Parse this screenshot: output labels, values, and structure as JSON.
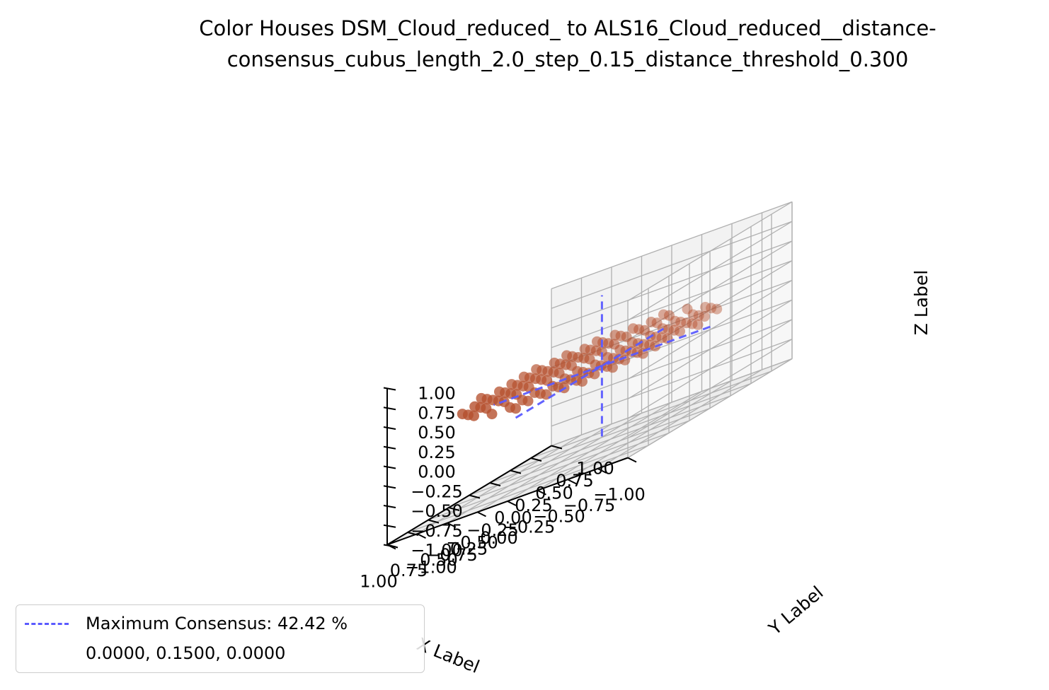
{
  "chart_data": {
    "type": "scatter3d",
    "title_line1": "Color Houses DSM_Cloud_reduced_ to ALS16_Cloud_reduced__distance-",
    "title_line2": "consensus_cubus_length_2.0_step_0.15_distance_threshold_0.300",
    "xlabel": "X Label",
    "ylabel": "Y Label",
    "zlabel": "Z Label",
    "xlim": [
      -1.0,
      1.0
    ],
    "ylim": [
      -1.0,
      1.0
    ],
    "zlim": [
      -1.0,
      1.0
    ],
    "x_ticks": [
      "−1.00",
      "−0.75",
      "−0.50",
      "−0.25",
      "0.00",
      "0.25",
      "0.50",
      "0.75",
      "1.00"
    ],
    "y_ticks": [
      "−1.00",
      "−0.75",
      "−0.50",
      "−0.25",
      "0.00",
      "0.25",
      "0.50",
      "0.75",
      "1.00"
    ],
    "z_ticks": [
      "−1.00",
      "−0.75",
      "−0.50",
      "−0.25",
      "0.00",
      "0.25",
      "0.50",
      "0.75",
      "1.00"
    ],
    "grid": true,
    "points": {
      "grid_step": 0.15,
      "x_range": [
        -0.9,
        0.9
      ],
      "y_range": [
        -0.9,
        0.9
      ],
      "z": 0.15,
      "z_spread": 0.06,
      "shape": "disc radius 0.9",
      "color": "#b5502e"
    },
    "consensus_lines": {
      "color": "#5b5bff",
      "style": "dashed",
      "point": [
        0.0,
        0.15,
        0.0
      ]
    },
    "legend": {
      "placement": "bottom-left",
      "entries": [
        "Maximum Consensus: 42.42 %",
        "0.0000, 0.1500, 0.0000"
      ]
    }
  }
}
